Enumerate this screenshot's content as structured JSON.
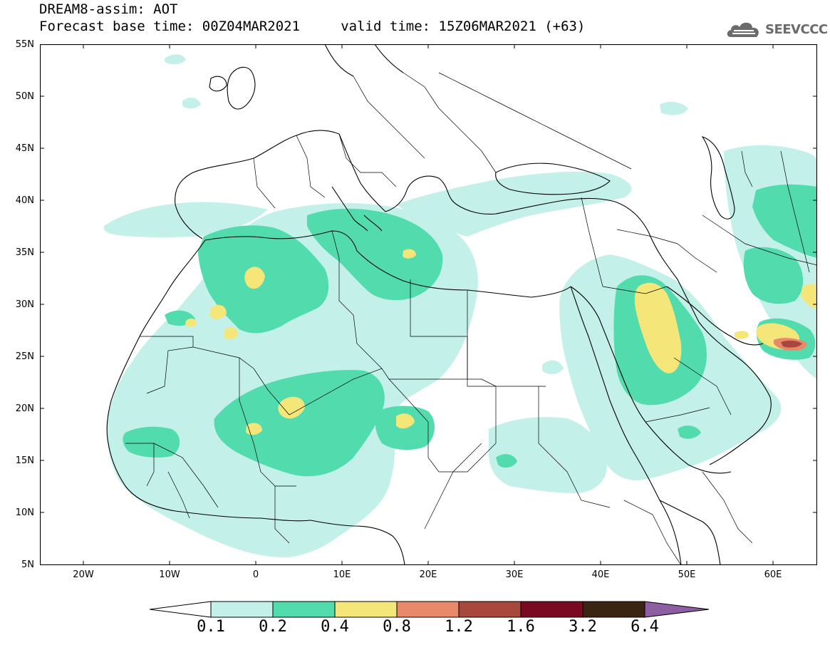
{
  "header": {
    "title_line1": "DREAM8-assim: AOT",
    "title_line2": "Forecast base time: 00Z04MAR2021     valid time: 15Z06MAR2021 (+63)",
    "logo_text": "SEEVCCC"
  },
  "map": {
    "lat_labels": [
      "55N",
      "50N",
      "45N",
      "40N",
      "35N",
      "30N",
      "25N",
      "20N",
      "15N",
      "10N",
      "5N"
    ],
    "lon_labels": [
      "20W",
      "10W",
      "0",
      "10E",
      "20E",
      "30E",
      "40E",
      "50E",
      "60E"
    ]
  },
  "colorbar": {
    "labels": [
      "0.1",
      "0.2",
      "0.4",
      "0.8",
      "1.2",
      "1.6",
      "3.2",
      "6.4"
    ],
    "colors": [
      "#ffffff",
      "#c4f0ea",
      "#52dcae",
      "#f5e67a",
      "#e8896a",
      "#a8473c",
      "#7a0a22",
      "#3a2412",
      "#8e5ea3"
    ]
  },
  "palette": {
    "aot_0_1": "#c4f0ea",
    "aot_0_2": "#52dcae",
    "aot_0_4": "#f5e67a",
    "aot_0_8": "#e8896a",
    "aot_1_2": "#a8473c"
  }
}
